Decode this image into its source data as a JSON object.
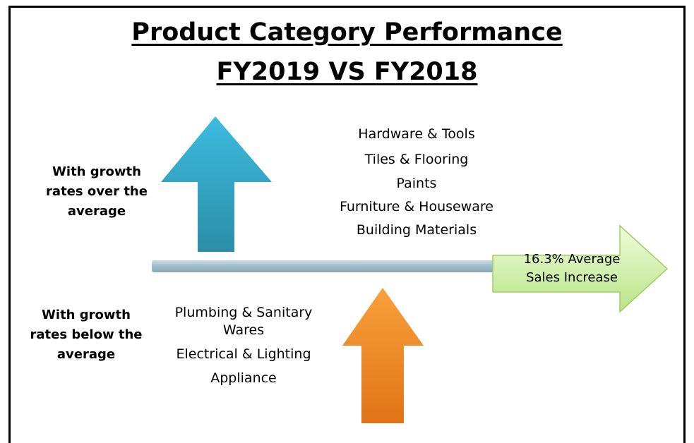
{
  "title": {
    "line1": "Product Category Performance",
    "line2": "FY2019 VS FY2018"
  },
  "above": {
    "label": "With growth rates over the average",
    "items": [
      "Hardware & Tools",
      "Tiles & Flooring",
      "Paints",
      "Furniture & Houseware",
      "Building Materials"
    ]
  },
  "below": {
    "label": "With growth rates below the average",
    "items": [
      "Plumbing & Sanitary Wares",
      "Electrical & Lighting",
      "Appliance"
    ]
  },
  "average": {
    "text": "16.3% Average Sales Increase"
  }
}
